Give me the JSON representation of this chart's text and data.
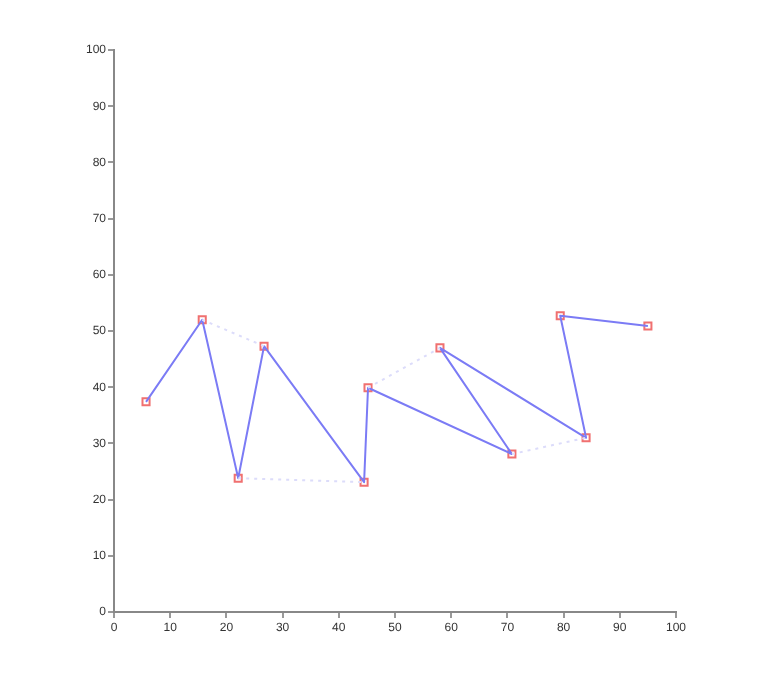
{
  "chart_data": {
    "type": "line",
    "xlim": [
      0,
      100
    ],
    "ylim": [
      0,
      100
    ],
    "xticks": [
      0,
      10,
      20,
      30,
      40,
      50,
      60,
      70,
      80,
      90,
      100
    ],
    "yticks": [
      0,
      10,
      20,
      30,
      40,
      50,
      60,
      70,
      80,
      90,
      100
    ],
    "grid": false,
    "legend": false,
    "series": [
      {
        "color": "#dcdcfa",
        "line_style": "dotted",
        "marker": "none",
        "x": [
          15.7,
          26.7,
          null,
          22.1,
          44.5,
          null,
          45.2,
          58,
          null,
          70.8,
          84
        ],
        "values": [
          52,
          47.3,
          null,
          23.8,
          23.1,
          null,
          39.9,
          47,
          null,
          28.1,
          31
        ]
      },
      {
        "color": "#7b7bf5",
        "line_style": "solid",
        "marker": "none",
        "x": [
          5.7,
          15.7,
          22.1,
          26.7,
          44.5,
          45.2,
          70.8,
          58,
          84,
          79.4,
          95
        ],
        "values": [
          37.4,
          52,
          23.8,
          47.3,
          23.1,
          39.9,
          28.1,
          47,
          31,
          52.7,
          50.9
        ]
      },
      {
        "type": "scatter",
        "color": "#f07070",
        "marker": "square",
        "x": [
          5.7,
          15.7,
          22.1,
          26.7,
          44.5,
          45.2,
          58,
          70.8,
          84,
          79.4,
          95
        ],
        "values": [
          37.4,
          52,
          23.8,
          47.3,
          23.1,
          39.9,
          47,
          28.1,
          31,
          52.7,
          50.9
        ]
      }
    ]
  }
}
